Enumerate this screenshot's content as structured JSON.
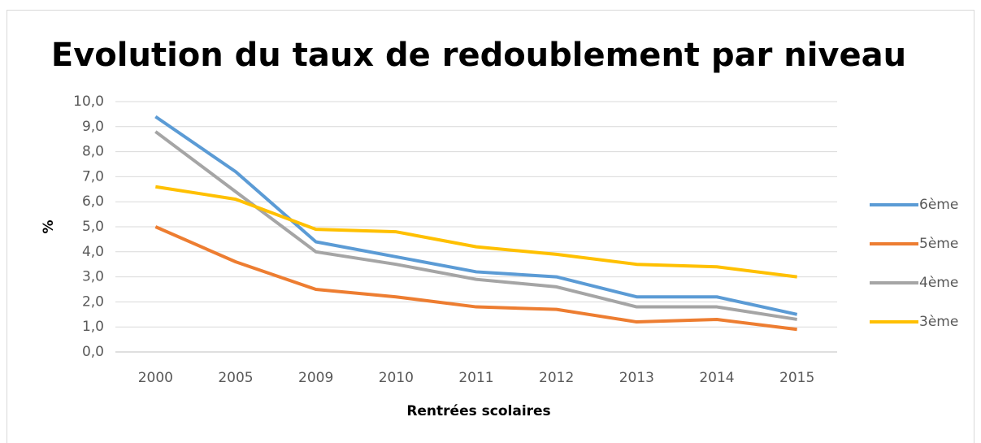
{
  "chart_data": {
    "type": "line",
    "title": "Evolution du taux de redoublement par niveau",
    "x_label": "Rentrées scolaires",
    "y_label": "%",
    "categories": [
      "2000",
      "2005",
      "2009",
      "2010",
      "2011",
      "2012",
      "2013",
      "2014",
      "2015"
    ],
    "series": [
      {
        "name": "6ème",
        "color": "#5b9bd5",
        "values": [
          9.4,
          7.2,
          4.4,
          3.8,
          3.2,
          3.0,
          2.2,
          2.2,
          1.5
        ]
      },
      {
        "name": "5ème",
        "color": "#ed7d31",
        "values": [
          5.0,
          3.6,
          2.5,
          2.2,
          1.8,
          1.7,
          1.2,
          1.3,
          0.9
        ]
      },
      {
        "name": "4ème",
        "color": "#a5a5a5",
        "values": [
          8.8,
          6.4,
          4.0,
          3.5,
          2.9,
          2.6,
          1.8,
          1.8,
          1.3
        ]
      },
      {
        "name": "3ème",
        "color": "#ffc000",
        "values": [
          6.6,
          6.1,
          4.9,
          4.8,
          4.2,
          3.9,
          3.5,
          3.4,
          3.0
        ]
      }
    ],
    "ylim": [
      0,
      10
    ],
    "yticks": [
      {
        "value": 0,
        "label": "0,0"
      },
      {
        "value": 1,
        "label": "1,0"
      },
      {
        "value": 2,
        "label": "2,0"
      },
      {
        "value": 3,
        "label": "3,0"
      },
      {
        "value": 4,
        "label": "4,0"
      },
      {
        "value": 5,
        "label": "5,0"
      },
      {
        "value": 6,
        "label": "6,0"
      },
      {
        "value": 7,
        "label": "7,0"
      },
      {
        "value": 8,
        "label": "8,0"
      },
      {
        "value": 9,
        "label": "9,0"
      },
      {
        "value": 10,
        "label": "10,0"
      }
    ],
    "grid": true,
    "legend": "right"
  }
}
